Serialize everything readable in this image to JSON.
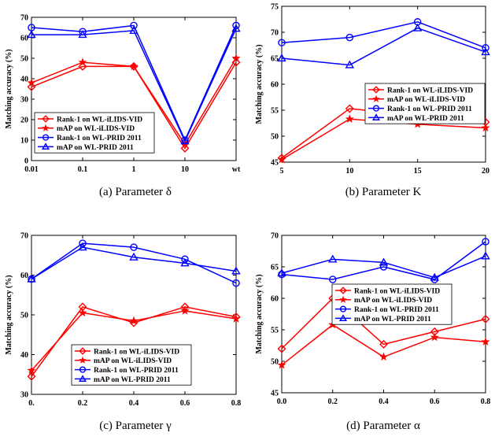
{
  "chart_data": [
    {
      "type": "line",
      "caption": "(a) Parameter δ",
      "ylabel": "Matching accuracy (%)",
      "x_ticks": [
        "0.01",
        "0.1",
        "1",
        "10",
        "wt"
      ],
      "ylim": [
        0,
        70
      ],
      "y_ticks": [
        0,
        10,
        20,
        30,
        40,
        50,
        60,
        70
      ],
      "legend_position": "bottom-left",
      "series": [
        {
          "name": "Rank-1 on WL-iLIDS-VID",
          "color": "#ff0000",
          "marker": "diamond",
          "values": [
            36,
            46,
            46,
            6,
            48
          ]
        },
        {
          "name": "mAP on WL-iLIDS-VID",
          "color": "#ff0000",
          "marker": "star",
          "values": [
            38,
            48,
            46,
            8,
            50
          ]
        },
        {
          "name": "Rank-1 on WL-PRID 2011",
          "color": "#0000ff",
          "marker": "circle",
          "values": [
            65,
            63,
            66,
            10,
            66
          ]
        },
        {
          "name": "mAP on WL-PRID 2011",
          "color": "#0000ff",
          "marker": "triangle",
          "values": [
            61.5,
            61.5,
            63.5,
            9.5,
            64.5
          ]
        }
      ]
    },
    {
      "type": "line",
      "caption": "(b) Parameter K",
      "ylabel": "Matching accuracy (%)",
      "x_ticks": [
        "5",
        "10",
        "15",
        "20"
      ],
      "ylim": [
        45,
        75
      ],
      "y_ticks": [
        45,
        50,
        55,
        60,
        65,
        70,
        75
      ],
      "legend_position": "middle-right",
      "series": [
        {
          "name": "Rank-1 on WL-iLIDS-VID",
          "color": "#ff0000",
          "marker": "diamond",
          "values": [
            45.8,
            55.3,
            54,
            52.7
          ]
        },
        {
          "name": "mAP on WL-iLIDS-VID",
          "color": "#ff0000",
          "marker": "star",
          "values": [
            45.5,
            53.3,
            52.3,
            51.6
          ]
        },
        {
          "name": "Rank-1 on WL-PRID 2011",
          "color": "#0000ff",
          "marker": "circle",
          "values": [
            68,
            69,
            72,
            67
          ]
        },
        {
          "name": "mAP on WL-PRID 2011",
          "color": "#0000ff",
          "marker": "triangle",
          "values": [
            65,
            63.7,
            70.8,
            66.2
          ]
        }
      ]
    },
    {
      "type": "line",
      "caption": "(c) Parameter γ",
      "ylabel": "Matching accuracy (%)",
      "x_ticks": [
        "0.",
        "0.2",
        "0.4",
        "0.6",
        "0.8"
      ],
      "ylim": [
        30,
        70
      ],
      "y_ticks": [
        30,
        40,
        50,
        60,
        70
      ],
      "legend_position": "bottom-center",
      "series": [
        {
          "name": "Rank-1 on WL-iLIDS-VID",
          "color": "#ff0000",
          "marker": "diamond",
          "values": [
            34.5,
            52,
            48,
            52,
            49.5
          ]
        },
        {
          "name": "mAP on WL-iLIDS-VID",
          "color": "#ff0000",
          "marker": "star",
          "values": [
            36,
            50.5,
            48.5,
            51,
            49
          ]
        },
        {
          "name": "Rank-1 on WL-PRID 2011",
          "color": "#0000ff",
          "marker": "circle",
          "values": [
            59,
            68,
            67,
            64,
            58
          ]
        },
        {
          "name": "mAP on WL-PRID 2011",
          "color": "#0000ff",
          "marker": "triangle",
          "values": [
            59,
            67,
            64.5,
            63,
            61
          ]
        }
      ]
    },
    {
      "type": "line",
      "caption": "(d) Parameter α",
      "ylabel": "Matching accuracy (%)",
      "x_ticks": [
        "0.0",
        "0.2",
        "0.4",
        "0.6",
        "0.8"
      ],
      "ylim": [
        45,
        70
      ],
      "y_ticks": [
        45,
        50,
        55,
        60,
        65,
        70
      ],
      "legend_position": "middle-center",
      "series": [
        {
          "name": "Rank-1 on WL-iLIDS-VID",
          "color": "#ff0000",
          "marker": "diamond",
          "values": [
            52,
            60,
            52.7,
            54.7,
            56.7
          ]
        },
        {
          "name": "mAP on WL-iLIDS-VID",
          "color": "#ff0000",
          "marker": "star",
          "values": [
            49.4,
            55.8,
            50.7,
            53.8,
            53.1
          ]
        },
        {
          "name": "Rank-1 on WL-PRID 2011",
          "color": "#0000ff",
          "marker": "circle",
          "values": [
            63.8,
            63,
            65,
            63,
            69
          ]
        },
        {
          "name": "mAP on WL-PRID 2011",
          "color": "#0000ff",
          "marker": "triangle",
          "values": [
            64,
            66.2,
            65.7,
            63.3,
            66.7
          ]
        }
      ]
    }
  ]
}
